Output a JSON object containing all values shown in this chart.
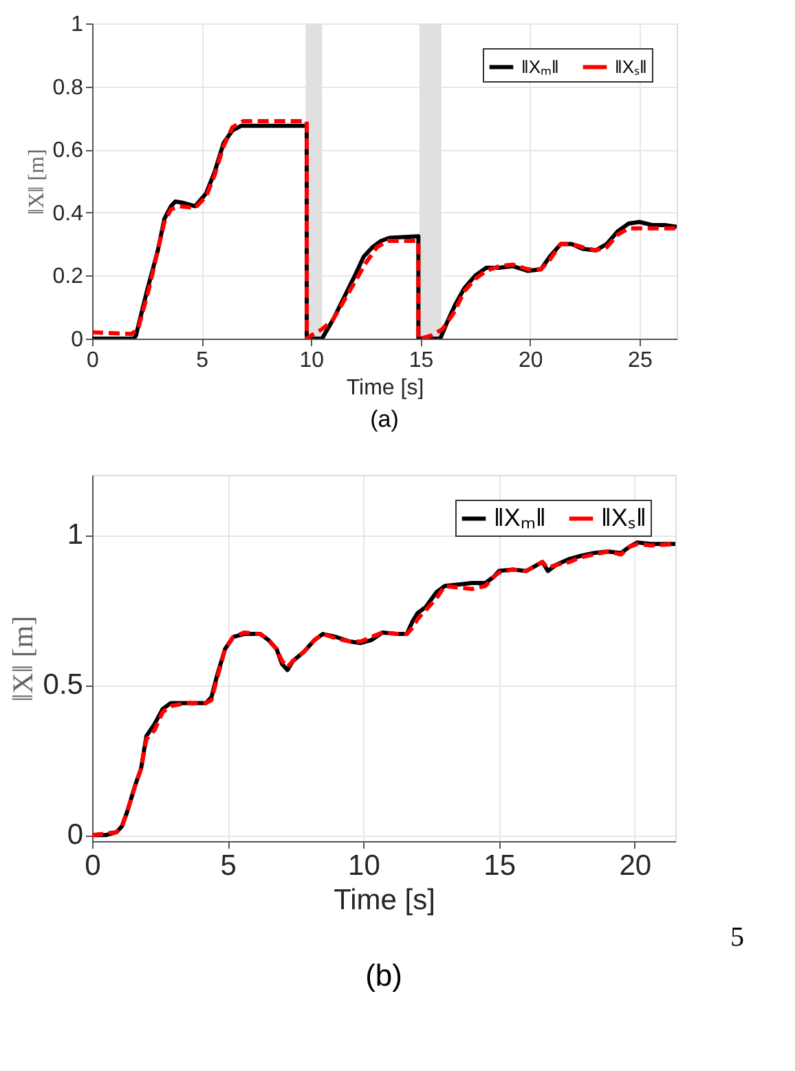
{
  "chart_data": [
    {
      "type": "line",
      "title": "(a)",
      "xlabel": "Time [s]",
      "ylabel": "‖X‖ [m]",
      "xlim": [
        0,
        26.7
      ],
      "xticks": [
        0,
        5,
        10,
        15,
        20,
        25
      ],
      "ylim": [
        0,
        1
      ],
      "yticks": [
        0,
        0.2,
        0.4,
        0.6,
        0.8,
        1
      ],
      "grid": true,
      "legend": "top right",
      "bands": [
        {
          "axis": "x",
          "from": 9.75,
          "to": 10.5,
          "color": "#e0e0e0"
        },
        {
          "axis": "x",
          "from": 14.95,
          "to": 15.95,
          "color": "#e0e0e0"
        }
      ],
      "series": [
        {
          "name": "‖Xₘ‖",
          "color": "#000000",
          "line_style": "solid",
          "x": [
            0,
            1.9,
            2.0,
            2.5,
            3.0,
            3.3,
            3.6,
            3.8,
            4.2,
            4.7,
            5.2,
            5.6,
            6.0,
            6.4,
            6.8,
            9.8,
            9.8,
            10.5,
            11.0,
            11.5,
            12.0,
            12.4,
            12.8,
            13.2,
            13.6,
            14.9,
            14.9,
            15.9,
            16.2,
            16.6,
            17.0,
            17.5,
            18.0,
            18.6,
            19.2,
            19.9,
            20.5,
            20.9,
            21.4,
            21.9,
            22.4,
            23.0,
            23.5,
            24.0,
            24.5,
            25.0,
            25.6,
            26.2,
            26.7
          ],
          "values": [
            0,
            0,
            0.01,
            0.15,
            0.28,
            0.38,
            0.42,
            0.435,
            0.43,
            0.42,
            0.46,
            0.53,
            0.62,
            0.66,
            0.675,
            0.675,
            0,
            0,
            0.06,
            0.13,
            0.2,
            0.26,
            0.29,
            0.31,
            0.32,
            0.325,
            0,
            0,
            0.05,
            0.11,
            0.16,
            0.2,
            0.225,
            0.225,
            0.23,
            0.215,
            0.22,
            0.26,
            0.3,
            0.3,
            0.285,
            0.28,
            0.3,
            0.34,
            0.365,
            0.37,
            0.36,
            0.36,
            0.355
          ]
        },
        {
          "name": "‖Xₛ‖",
          "color": "#ff0000",
          "line_style": "dashed",
          "x": [
            0,
            1.8,
            2.1,
            2.6,
            3.0,
            3.3,
            3.6,
            4.0,
            4.7,
            5.2,
            5.6,
            6.0,
            6.4,
            6.9,
            9.8,
            9.8,
            10.0,
            10.5,
            11.0,
            11.5,
            12.0,
            12.5,
            13.0,
            13.5,
            14.9,
            14.9,
            15.0,
            15.5,
            16.0,
            16.5,
            17.0,
            17.5,
            18.0,
            18.6,
            19.2,
            19.9,
            20.5,
            20.9,
            21.4,
            21.9,
            22.4,
            23.0,
            23.5,
            24.0,
            24.5,
            26.7
          ],
          "values": [
            0.02,
            0.015,
            0.03,
            0.16,
            0.28,
            0.37,
            0.41,
            0.42,
            0.415,
            0.45,
            0.52,
            0.61,
            0.67,
            0.69,
            0.69,
            0,
            0.01,
            0.03,
            0.06,
            0.12,
            0.18,
            0.24,
            0.29,
            0.31,
            0.31,
            0,
            0,
            0.01,
            0.03,
            0.08,
            0.15,
            0.19,
            0.215,
            0.23,
            0.235,
            0.22,
            0.22,
            0.25,
            0.3,
            0.3,
            0.29,
            0.28,
            0.29,
            0.33,
            0.35,
            0.35
          ]
        }
      ]
    },
    {
      "type": "line",
      "title": "(b)",
      "xlabel": "Time [s]",
      "ylabel": "‖X‖ [m]",
      "xlim": [
        0,
        21.5
      ],
      "xticks": [
        0,
        5,
        10,
        15,
        20
      ],
      "ylim": [
        -0.02,
        1.2
      ],
      "yticks": [
        0,
        0.5,
        1
      ],
      "grid": true,
      "legend": "top right",
      "annotations": [
        "5"
      ],
      "series": [
        {
          "name": "‖Xₘ‖",
          "color": "#000000",
          "line_style": "solid",
          "x": [
            0,
            0.5,
            0.9,
            1.1,
            1.3,
            1.6,
            1.8,
            2.0,
            2.3,
            2.6,
            2.9,
            3.5,
            4.2,
            4.4,
            4.6,
            4.9,
            5.2,
            5.6,
            6.2,
            6.5,
            6.8,
            7.0,
            7.2,
            7.4,
            7.8,
            8.2,
            8.5,
            9.0,
            9.5,
            9.9,
            10.3,
            10.7,
            11.3,
            11.6,
            11.8,
            12.0,
            12.3,
            12.7,
            13.0,
            13.5,
            14.0,
            14.5,
            14.8,
            15.0,
            15.5,
            16.0,
            16.4,
            16.6,
            16.8,
            17.1,
            17.6,
            18.0,
            18.5,
            19.0,
            19.5,
            19.8,
            20.1,
            20.6,
            21.5
          ],
          "values": [
            0,
            0,
            0.01,
            0.03,
            0.08,
            0.17,
            0.22,
            0.33,
            0.37,
            0.42,
            0.44,
            0.44,
            0.44,
            0.46,
            0.53,
            0.62,
            0.66,
            0.67,
            0.67,
            0.65,
            0.62,
            0.57,
            0.55,
            0.58,
            0.61,
            0.65,
            0.67,
            0.66,
            0.645,
            0.64,
            0.65,
            0.675,
            0.67,
            0.67,
            0.71,
            0.74,
            0.76,
            0.81,
            0.83,
            0.835,
            0.84,
            0.84,
            0.86,
            0.88,
            0.885,
            0.88,
            0.9,
            0.91,
            0.88,
            0.9,
            0.92,
            0.93,
            0.94,
            0.945,
            0.94,
            0.96,
            0.975,
            0.97,
            0.97
          ]
        },
        {
          "name": "‖Xₛ‖",
          "color": "#ff0000",
          "line_style": "dashed",
          "x": [
            0,
            0.5,
            0.9,
            1.1,
            1.3,
            1.6,
            1.8,
            2.0,
            2.3,
            2.6,
            2.9,
            3.5,
            4.2,
            4.4,
            4.6,
            4.9,
            5.2,
            5.6,
            6.2,
            6.5,
            6.8,
            7.0,
            7.2,
            7.4,
            7.8,
            8.2,
            8.5,
            9.0,
            9.5,
            9.9,
            10.3,
            10.7,
            11.3,
            11.6,
            11.8,
            12.0,
            12.3,
            12.7,
            13.0,
            13.5,
            14.0,
            14.5,
            14.8,
            15.0,
            15.5,
            16.0,
            16.4,
            16.6,
            16.8,
            17.1,
            17.6,
            18.0,
            18.5,
            19.0,
            19.5,
            19.8,
            20.1,
            20.6,
            21.5
          ],
          "values": [
            0,
            0.005,
            0.01,
            0.03,
            0.08,
            0.17,
            0.22,
            0.32,
            0.35,
            0.41,
            0.43,
            0.44,
            0.44,
            0.45,
            0.52,
            0.62,
            0.66,
            0.675,
            0.67,
            0.65,
            0.62,
            0.58,
            0.56,
            0.58,
            0.61,
            0.65,
            0.67,
            0.655,
            0.645,
            0.645,
            0.66,
            0.675,
            0.67,
            0.67,
            0.69,
            0.72,
            0.75,
            0.79,
            0.83,
            0.825,
            0.82,
            0.83,
            0.86,
            0.875,
            0.885,
            0.88,
            0.9,
            0.91,
            0.89,
            0.9,
            0.91,
            0.925,
            0.935,
            0.945,
            0.935,
            0.96,
            0.97,
            0.965,
            0.97
          ]
        }
      ]
    }
  ]
}
